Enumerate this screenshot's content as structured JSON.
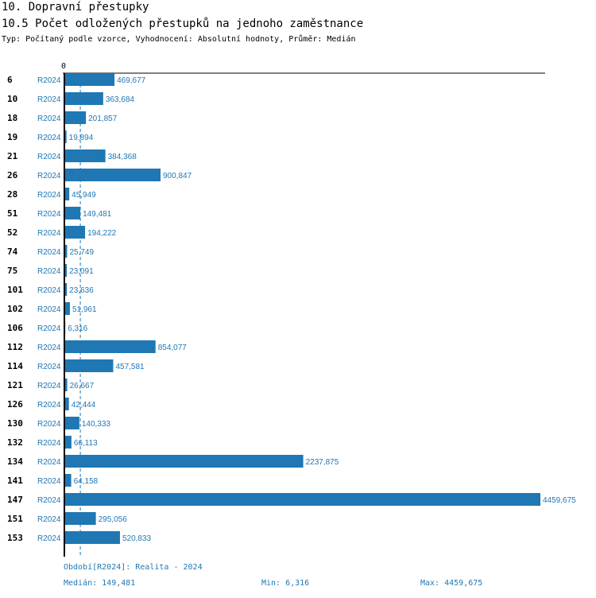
{
  "header": {
    "title": "10. Dopravní přestupky",
    "subtitle": "10.5 Počet odložených přestupků na jednoho zaměstnance",
    "info": "Typ: Počítaný podle vzorce, Vyhodnocení: Absolutní hodnoty, Průměr: Medián"
  },
  "chart_data": {
    "type": "bar",
    "orientation": "horizontal",
    "series_name": "R2024",
    "axis_zero_label": "0",
    "categories": [
      "6",
      "10",
      "18",
      "19",
      "21",
      "26",
      "28",
      "51",
      "52",
      "74",
      "75",
      "101",
      "102",
      "106",
      "112",
      "114",
      "121",
      "126",
      "130",
      "132",
      "134",
      "141",
      "147",
      "151",
      "153"
    ],
    "values": [
      469.677,
      363.684,
      201.857,
      19.894,
      384.368,
      900.847,
      45.949,
      149.481,
      194.222,
      25.749,
      23.091,
      23.636,
      51.961,
      6.316,
      854.077,
      457.581,
      26.667,
      42.444,
      140.333,
      66.113,
      2237.875,
      64.158,
      4459.675,
      295.056,
      520.833
    ],
    "value_labels": [
      "469,677",
      "363,684",
      "201,857",
      "19,894",
      "384,368",
      "900,847",
      "45,949",
      "149,481",
      "194,222",
      "25,749",
      "23,091",
      "23,636",
      "51,961",
      "6,316",
      "854,077",
      "457,581",
      "26,667",
      "42,444",
      "140,333",
      "66,113",
      "2237,875",
      "64,158",
      "4459,675",
      "295,056",
      "520,833"
    ],
    "median": 149.481,
    "xlim": [
      0,
      4459.675
    ],
    "bar_color": "#1f77b4"
  },
  "footer": {
    "period": "Období[R2024]: Realita - 2024",
    "median": "Medián: 149,481",
    "min": "Min: 6,316",
    "max": "Max: 4459,675"
  }
}
